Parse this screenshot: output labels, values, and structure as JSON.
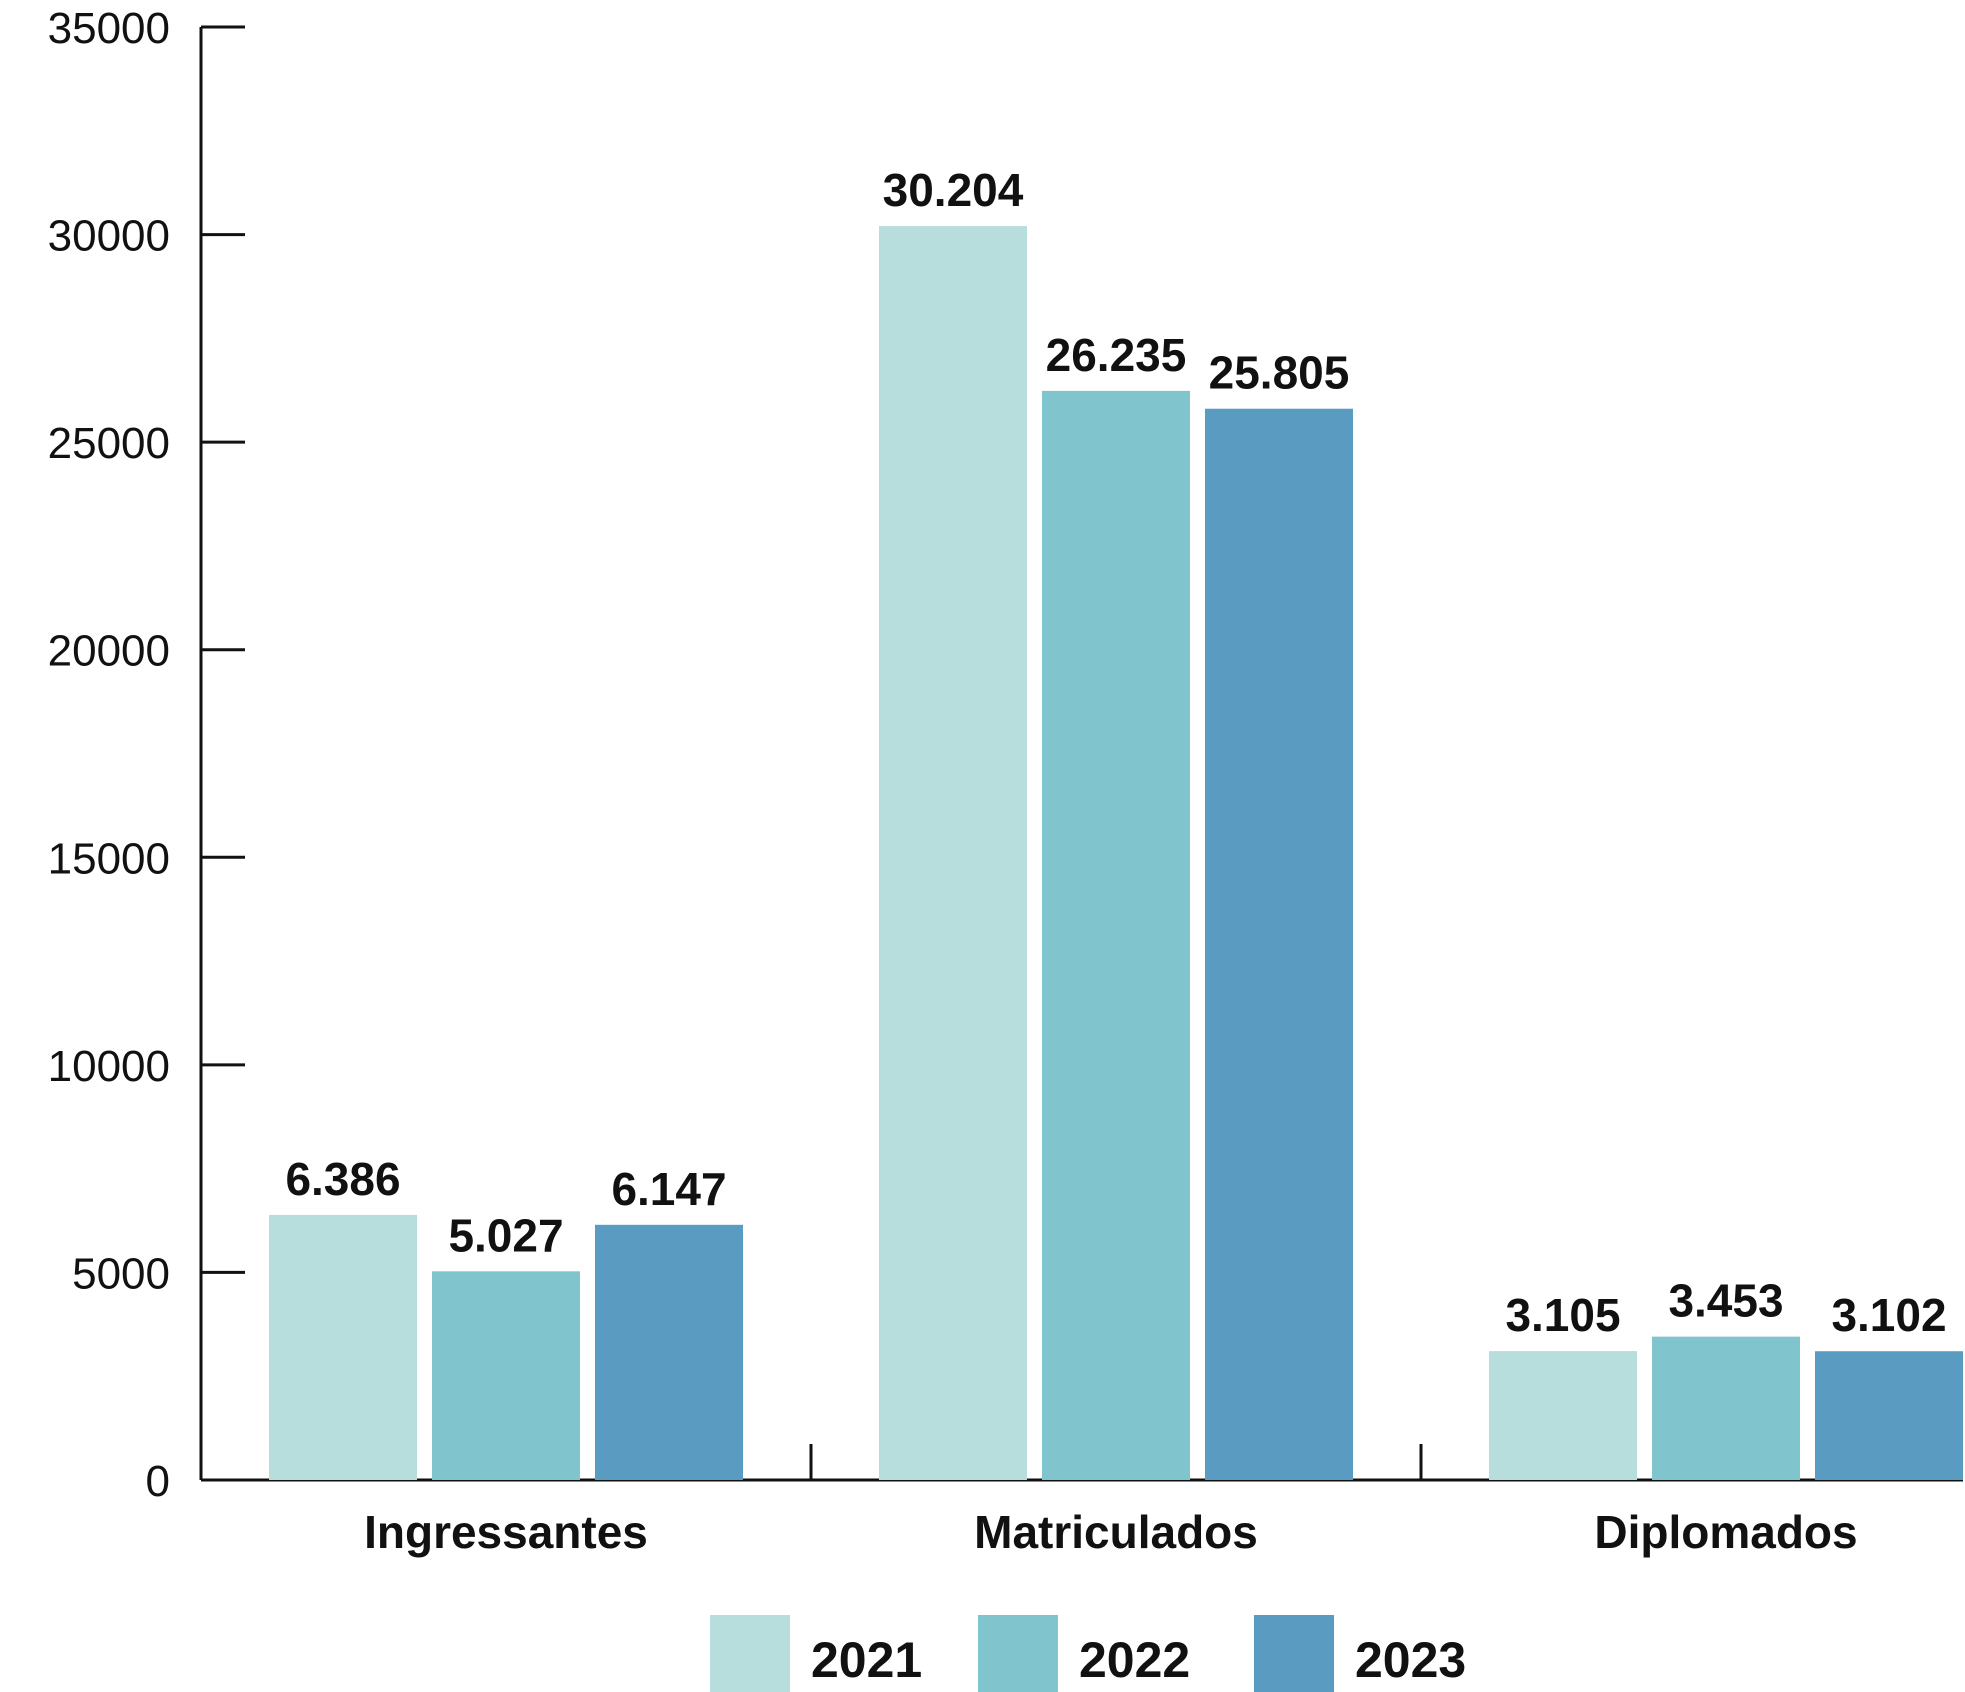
{
  "chart_data": {
    "type": "bar",
    "categories": [
      "Ingressantes",
      "Matriculados",
      "Diplomados"
    ],
    "series": [
      {
        "name": "2021",
        "color": "#b7dedd",
        "values": [
          6386,
          30204,
          3105
        ],
        "labels": [
          "6.386",
          "30.204",
          "3.105"
        ]
      },
      {
        "name": "2022",
        "color": "#80c4ce",
        "values": [
          5027,
          26235,
          3453
        ],
        "labels": [
          "5.027",
          "26.235",
          "3.453"
        ]
      },
      {
        "name": "2023",
        "color": "#5a9bc1",
        "values": [
          6147,
          25805,
          3102
        ],
        "labels": [
          "6.147",
          "25.805",
          "3.102"
        ]
      }
    ],
    "yticks": [
      "0",
      "5000",
      "10000",
      "15000",
      "20000",
      "25000",
      "30000",
      "35000"
    ],
    "ylim": [
      0,
      35000
    ],
    "grid": false,
    "legend_position": "bottom-center"
  }
}
